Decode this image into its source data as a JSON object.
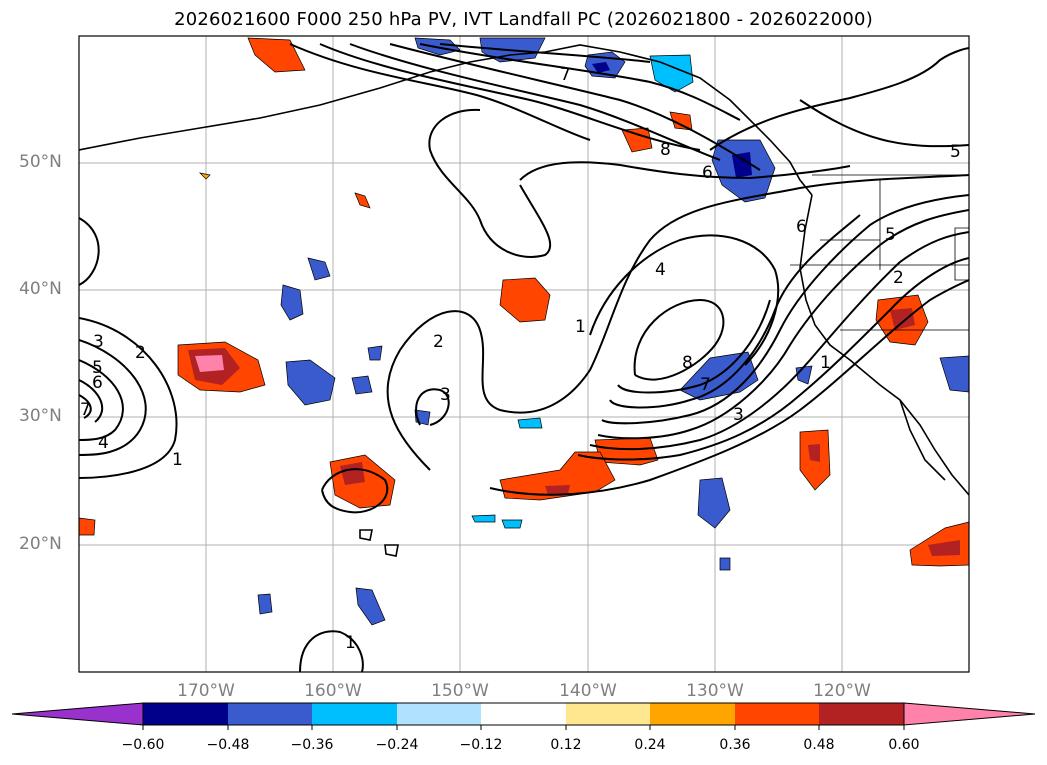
{
  "title": "2026021600 F000 250 hPa PV, IVT Landfall PC (2026021800 - 2026022000)",
  "lat_labels": [
    "50°N",
    "40°N",
    "30°N",
    "20°N"
  ],
  "lon_labels": [
    "170°W",
    "160°W",
    "150°W",
    "140°W",
    "130°W",
    "120°W"
  ],
  "contour_labels": [
    "1",
    "2",
    "3",
    "4",
    "5",
    "6",
    "7",
    "8"
  ],
  "colorbar": {
    "ticks": [
      "−0.60",
      "−0.48",
      "−0.36",
      "−0.24",
      "−0.12",
      "0.12",
      "0.24",
      "0.36",
      "0.48",
      "0.60"
    ],
    "colors": [
      "#9932cc",
      "#00008b",
      "#3a5bcd",
      "#00bfff",
      "#b0e2ff",
      "#ffffff",
      "#ffe78f",
      "#ffa500",
      "#ff4500",
      "#b22222",
      "#ff82ab"
    ]
  }
}
